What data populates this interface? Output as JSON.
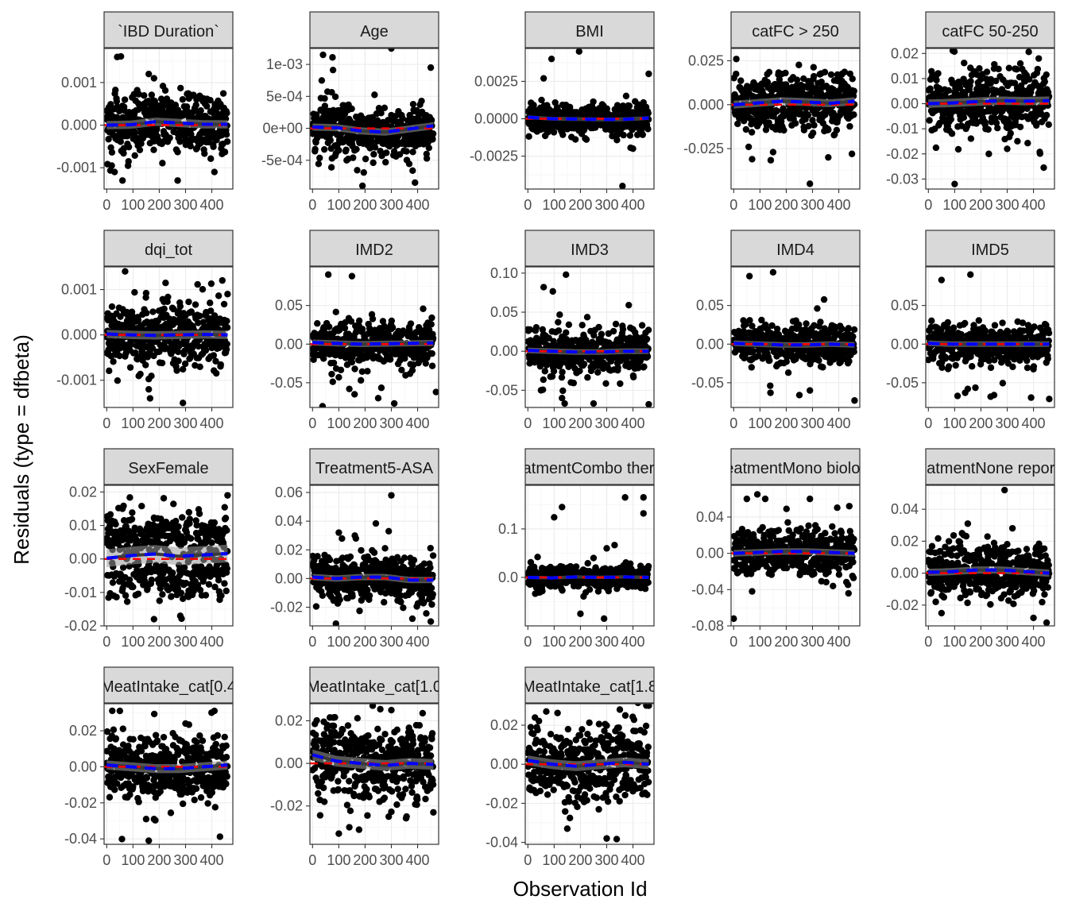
{
  "chart_data": {
    "type": "scatter",
    "xlabel": "Observation Id",
    "ylabel": "Residuals (type = dfbeta)",
    "x_ticks": [
      "0",
      "100",
      "200",
      "300",
      "400"
    ],
    "xlim": [
      -10,
      480
    ],
    "n_points": 460,
    "colors": {
      "points": "#000000",
      "reference": "#ff0000",
      "trend": "#0000ff",
      "smooth": "#3a3a3a"
    },
    "panels": [
      {
        "strip": "`IBD Duration`",
        "ylim": [
          -0.0015,
          0.0018
        ],
        "ticks": [
          {
            "v": 0.001,
            "l": "0.001"
          },
          {
            "v": 0,
            "l": "0.000"
          },
          {
            "v": -0.001,
            "l": "-0.001"
          }
        ],
        "spread": 0.00035,
        "trend": [
          0,
          1e-05,
          8e-05,
          5e-05,
          2e-05,
          2e-05
        ],
        "outliers": [
          [
            60,
            -0.0013
          ],
          [
            30,
            -0.0011
          ],
          [
            40,
            0.0016
          ],
          [
            160,
            0.0012
          ],
          [
            270,
            -0.0013
          ],
          [
            410,
            -0.0011
          ],
          [
            180,
            0.0011
          ]
        ]
      },
      {
        "strip": "Age",
        "ylim": [
          -0.00095,
          0.00125
        ],
        "ticks": [
          {
            "v": 0.001,
            "l": "1e-03"
          },
          {
            "v": 0.0005,
            "l": "5e-04"
          },
          {
            "v": 0,
            "l": "0e+00"
          },
          {
            "v": -0.0005,
            "l": "-5e-04"
          }
        ],
        "spread": 0.0002,
        "trend": [
          2e-05,
          1e-05,
          -4e-05,
          -6e-05,
          -1e-05,
          4e-05
        ],
        "outliers": [
          [
            40,
            0.00115
          ],
          [
            300,
            0.00125
          ],
          [
            190,
            -0.0009
          ],
          [
            390,
            -0.00085
          ],
          [
            450,
            0.00095
          ],
          [
            130,
            -0.0005
          ]
        ]
      },
      {
        "strip": "BMI",
        "ylim": [
          -0.0047,
          0.0047
        ],
        "ticks": [
          {
            "v": 0.0025,
            "l": "0.0025"
          },
          {
            "v": 0,
            "l": "0.0000"
          },
          {
            "v": -0.0025,
            "l": "-0.0025"
          }
        ],
        "spread": 0.00045,
        "trend": [
          0.0001,
          0,
          -2e-05,
          -5e-05,
          -4e-05,
          5e-05
        ],
        "outliers": [
          [
            90,
            0.004
          ],
          [
            195,
            0.0045
          ],
          [
            360,
            -0.0045
          ],
          [
            460,
            0.003
          ],
          [
            60,
            0.0027
          ],
          [
            400,
            -0.002
          ]
        ]
      },
      {
        "strip": "catFC > 250",
        "ylim": [
          -0.048,
          0.032
        ],
        "ticks": [
          {
            "v": 0.025,
            "l": "0.025"
          },
          {
            "v": 0,
            "l": "0.000"
          },
          {
            "v": -0.025,
            "l": "-0.025"
          }
        ],
        "spread": 0.008,
        "trend": [
          0,
          0.001,
          0.002,
          0.0015,
          0.0008,
          0.002
        ],
        "outliers": [
          [
            290,
            -0.045
          ],
          [
            70,
            -0.031
          ],
          [
            360,
            -0.03
          ],
          [
            10,
            0.026
          ],
          [
            150,
            -0.027
          ],
          [
            450,
            -0.028
          ]
        ]
      },
      {
        "strip": "catFC 50-250",
        "ylim": [
          -0.034,
          0.022
        ],
        "ticks": [
          {
            "v": 0.02,
            "l": "0.02"
          },
          {
            "v": 0.01,
            "l": "0.01"
          },
          {
            "v": 0,
            "l": "0.00"
          },
          {
            "v": -0.01,
            "l": "-0.01"
          },
          {
            "v": -0.02,
            "l": "-0.02"
          },
          {
            "v": -0.03,
            "l": "-0.03"
          }
        ],
        "spread": 0.006,
        "trend": [
          0,
          0.0003,
          0.0008,
          0.0012,
          0.001,
          0.0012
        ],
        "outliers": [
          [
            100,
            -0.032
          ],
          [
            420,
            0.018
          ],
          [
            230,
            -0.02
          ],
          [
            300,
            -0.018
          ],
          [
            350,
            0.016
          ]
        ]
      },
      {
        "strip": "dqi_tot",
        "ylim": [
          -0.0016,
          0.0015
        ],
        "ticks": [
          {
            "v": 0.001,
            "l": "0.001"
          },
          {
            "v": 0,
            "l": "0.000"
          },
          {
            "v": -0.001,
            "l": "-0.001"
          }
        ],
        "spread": 0.00033,
        "trend": [
          2e-05,
          0,
          -1e-05,
          0,
          1e-05,
          0
        ],
        "outliers": [
          [
            70,
            0.0014
          ],
          [
            290,
            -0.0015
          ],
          [
            165,
            -0.0014
          ],
          [
            440,
            0.0012
          ],
          [
            460,
            0.0009
          ],
          [
            160,
            -0.0012
          ]
        ]
      },
      {
        "strip": "IMD2",
        "ylim": [
          -0.082,
          0.1
        ],
        "ticks": [
          {
            "v": 0.05,
            "l": "0.05"
          },
          {
            "v": 0,
            "l": "0.00"
          },
          {
            "v": -0.05,
            "l": "-0.05"
          }
        ],
        "spread": 0.014,
        "trend": [
          0.002,
          0.001,
          0,
          0.0005,
          0.001,
          0.0015
        ],
        "outliers": [
          [
            60,
            0.09
          ],
          [
            150,
            0.088
          ],
          [
            160,
            -0.065
          ],
          [
            250,
            -0.07
          ],
          [
            470,
            -0.062
          ],
          [
            140,
            -0.058
          ]
        ]
      },
      {
        "strip": "IMD3",
        "ylim": [
          -0.072,
          0.108
        ],
        "ticks": [
          {
            "v": 0.1,
            "l": "0.10"
          },
          {
            "v": 0.05,
            "l": "0.05"
          },
          {
            "v": 0,
            "l": "0.00"
          },
          {
            "v": -0.05,
            "l": "-0.05"
          }
        ],
        "spread": 0.013,
        "trend": [
          0.001,
          0,
          -0.001,
          -0.001,
          0,
          0
        ],
        "outliers": [
          [
            60,
            0.082
          ],
          [
            145,
            0.098
          ],
          [
            140,
            -0.067
          ],
          [
            250,
            -0.067
          ],
          [
            460,
            -0.068
          ],
          [
            50,
            -0.05
          ],
          [
            130,
            -0.06
          ]
        ]
      },
      {
        "strip": "IMD4",
        "ylim": [
          -0.082,
          0.1
        ],
        "ticks": [
          {
            "v": 0.05,
            "l": "0.05"
          },
          {
            "v": 0,
            "l": "0.00"
          },
          {
            "v": -0.05,
            "l": "-0.05"
          }
        ],
        "spread": 0.013,
        "trend": [
          0.001,
          0,
          -0.001,
          -0.001,
          0,
          -0.001
        ],
        "outliers": [
          [
            60,
            0.088
          ],
          [
            150,
            0.093
          ],
          [
            140,
            -0.063
          ],
          [
            250,
            -0.066
          ],
          [
            460,
            -0.073
          ],
          [
            290,
            -0.06
          ]
        ]
      },
      {
        "strip": "IMD5",
        "ylim": [
          -0.082,
          0.1
        ],
        "ticks": [
          {
            "v": 0.05,
            "l": "0.05"
          },
          {
            "v": 0,
            "l": "0.00"
          },
          {
            "v": -0.05,
            "l": "-0.05"
          }
        ],
        "spread": 0.013,
        "trend": [
          0.001,
          0,
          0,
          0,
          0,
          0
        ],
        "outliers": [
          [
            50,
            0.083
          ],
          [
            160,
            0.09
          ],
          [
            140,
            -0.063
          ],
          [
            250,
            -0.066
          ],
          [
            460,
            -0.071
          ],
          [
            150,
            -0.058
          ]
        ]
      },
      {
        "strip": "SexFemale",
        "ylim": [
          -0.02,
          0.022
        ],
        "ticks": [
          {
            "v": 0.02,
            "l": "0.02"
          },
          {
            "v": 0.01,
            "l": "0.01"
          },
          {
            "v": 0,
            "l": "0.00"
          },
          {
            "v": -0.01,
            "l": "-0.01"
          },
          {
            "v": -0.02,
            "l": "-0.02"
          }
        ],
        "spread": 0.0095,
        "bimodal": true,
        "trend": [
          0.0002,
          0.001,
          0.0015,
          0.0008,
          0.0012,
          0.0016
        ],
        "outliers": [
          [
            460,
            0.019
          ],
          [
            60,
            0.015
          ],
          [
            180,
            -0.018
          ],
          [
            280,
            -0.017
          ]
        ]
      },
      {
        "strip": "Treatment5-ASA",
        "ylim": [
          -0.033,
          0.065
        ],
        "ticks": [
          {
            "v": 0.06,
            "l": "0.06"
          },
          {
            "v": 0.04,
            "l": "0.04"
          },
          {
            "v": 0.02,
            "l": "0.02"
          },
          {
            "v": 0,
            "l": "0.00"
          },
          {
            "v": -0.02,
            "l": "-0.02"
          }
        ],
        "spread": 0.008,
        "trend": [
          0.001,
          0,
          0.001,
          0.001,
          -0.001,
          -0.001
        ],
        "outliers": [
          [
            300,
            0.058
          ],
          [
            100,
            0.032
          ],
          [
            290,
            0.033
          ],
          [
            450,
            -0.03
          ],
          [
            380,
            -0.028
          ]
        ]
      },
      {
        "strip": "TreatmentCombo therapy",
        "ylim": [
          -0.1,
          0.19
        ],
        "ticks": [
          {
            "v": 0.1,
            "l": "0.1"
          },
          {
            "v": 0,
            "l": "0.0"
          }
        ],
        "spread": 0.012,
        "trend": [
          0,
          -0.001,
          0.001,
          0,
          0.001,
          0
        ],
        "outliers": [
          [
            100,
            0.124
          ],
          [
            130,
            0.145
          ],
          [
            370,
            0.165
          ],
          [
            440,
            0.165
          ],
          [
            440,
            0.132
          ],
          [
            300,
            0.06
          ],
          [
            200,
            -0.075
          ],
          [
            290,
            -0.085
          ],
          [
            250,
            0.04
          ]
        ]
      },
      {
        "strip": "TreatmentMono biologic",
        "ylim": [
          -0.08,
          0.075
        ],
        "ticks": [
          {
            "v": 0.04,
            "l": "0.04"
          },
          {
            "v": 0,
            "l": "0.00"
          },
          {
            "v": -0.04,
            "l": "-0.04"
          },
          {
            "v": -0.08,
            "l": "-0.08"
          }
        ],
        "spread": 0.013,
        "trend": [
          0,
          0.001,
          0.002,
          0.002,
          0.001,
          0
        ],
        "outliers": [
          [
            0,
            -0.072
          ],
          [
            50,
            0.06
          ],
          [
            90,
            0.065
          ],
          [
            120,
            0.06
          ],
          [
            290,
            0.06
          ],
          [
            440,
            0.052
          ],
          [
            70,
            -0.042
          ]
        ]
      },
      {
        "strip": "TreatmentNone reported",
        "ylim": [
          -0.033,
          0.055
        ],
        "ticks": [
          {
            "v": 0.04,
            "l": "0.04"
          },
          {
            "v": 0.02,
            "l": "0.02"
          },
          {
            "v": 0,
            "l": "0.00"
          },
          {
            "v": -0.02,
            "l": "-0.02"
          }
        ],
        "spread": 0.008,
        "trend": [
          0.0005,
          0.001,
          0.002,
          0.002,
          0.001,
          0
        ],
        "outliers": [
          [
            290,
            0.052
          ],
          [
            450,
            -0.031
          ],
          [
            400,
            -0.028
          ],
          [
            50,
            -0.025
          ],
          [
            150,
            0.031
          ]
        ]
      },
      {
        "strip": "MeatIntake_cat[0.4",
        "ylim": [
          -0.043,
          0.035
        ],
        "ticks": [
          {
            "v": 0.02,
            "l": "0.02"
          },
          {
            "v": 0,
            "l": "0.00"
          },
          {
            "v": -0.02,
            "l": "-0.02"
          },
          {
            "v": -0.04,
            "l": "-0.04"
          }
        ],
        "spread": 0.009,
        "trend": [
          0.001,
          0,
          -0.001,
          -0.001,
          0,
          0.001
        ],
        "outliers": [
          [
            160,
            -0.041
          ],
          [
            150,
            -0.029
          ],
          [
            180,
            -0.029
          ],
          [
            50,
            0.031
          ],
          [
            410,
            0.031
          ],
          [
            300,
            0.024
          ]
        ]
      },
      {
        "strip": "MeatIntake_cat[1.0",
        "ylim": [
          -0.038,
          0.028
        ],
        "ticks": [
          {
            "v": 0.02,
            "l": "0.02"
          },
          {
            "v": 0,
            "l": "0.00"
          },
          {
            "v": -0.02,
            "l": "-0.02"
          }
        ],
        "spread": 0.009,
        "trend": [
          0.004,
          0.001,
          0,
          -0.001,
          0,
          -0.0005
        ],
        "outliers": [
          [
            100,
            -0.033
          ],
          [
            140,
            -0.03
          ],
          [
            290,
            -0.025
          ],
          [
            460,
            -0.023
          ],
          [
            300,
            0.025
          ]
        ]
      },
      {
        "strip": "MeatIntake_cat[1.8",
        "ylim": [
          -0.041,
          0.031
        ],
        "ticks": [
          {
            "v": 0.02,
            "l": "0.02"
          },
          {
            "v": 0,
            "l": "0.00"
          },
          {
            "v": -0.02,
            "l": "-0.02"
          },
          {
            "v": -0.04,
            "l": "-0.04"
          }
        ],
        "spread": 0.009,
        "trend": [
          0.002,
          0,
          -0.001,
          0,
          0.001,
          0
        ],
        "outliers": [
          [
            300,
            -0.038
          ],
          [
            150,
            -0.033
          ],
          [
            460,
            0.03
          ],
          [
            350,
            0.028
          ],
          [
            70,
            0.027
          ]
        ]
      }
    ]
  }
}
